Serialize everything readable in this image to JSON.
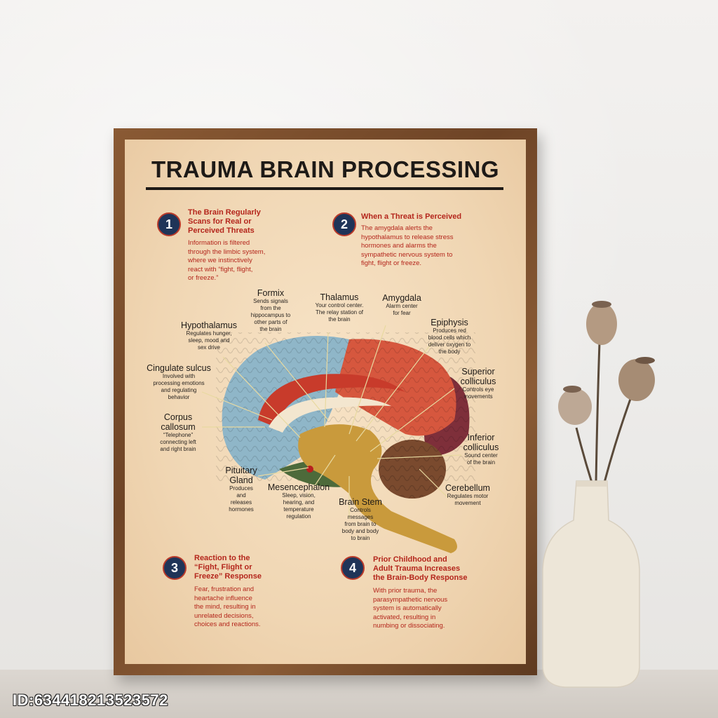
{
  "poster": {
    "title": "TRAUMA BRAIN PROCESSING",
    "steps": [
      {
        "number": "1",
        "title": "The Brain Regularly\nScans for Real or\nPerceived Threats",
        "body": "Information is filtered\nthrough the limbic system,\nwhere we instinctively\nreact with “fight, flight,\nor freeze.”"
      },
      {
        "number": "2",
        "title": "When a Threat is Perceived",
        "body": "The amygdala alerts the\nhypothalamus to release stress\nhormones and alarms the\nsympathetic nervous system to\nfight, flight or freeze."
      },
      {
        "number": "3",
        "title": "Reaction to the\n“Fight, Flight or\nFreeze” Response",
        "body": "Fear, frustration and\nheartache influence\nthe mind, resulting in\nunrelated decisions,\nchoices and reactions."
      },
      {
        "number": "4",
        "title": "Prior Childhood and\nAdult Trauma Increases\nthe Brain-Body Response",
        "body": "With prior trauma, the\nparasympathetic nervous\nsystem is automatically\nactivated, resulting in\nnumbing or dissociating."
      }
    ],
    "labels": {
      "formix": {
        "name": "Formix",
        "desc": "Sends signals\nfrom the\nhippocampus to\nother parts of\nthe brain"
      },
      "thalamus": {
        "name": "Thalamus",
        "desc": "Your control center.\nThe relay station of\nthe brain"
      },
      "amygdala": {
        "name": "Amygdala",
        "desc": "Alarm center\nfor fear"
      },
      "hypothalamus": {
        "name": "Hypothalamus",
        "desc": "Regulates hunger,\nsleep, mood and\nsex drive"
      },
      "epiphysis": {
        "name": "Epiphysis",
        "desc": "Produces red\nblood cells which\ndeliver oxygen to\nthe body"
      },
      "cingulate": {
        "name": "Cingulate sulcus",
        "desc": "Involved with\nprocessing emotions\nand regulating\nbehavior"
      },
      "superior": {
        "name": "Superior\ncolliculus",
        "desc": "Controls eye\nmovements"
      },
      "corpus": {
        "name": "Corpus\ncallosum",
        "desc": "“Telephone”\nconnecting left\nand right brain"
      },
      "inferior": {
        "name": "Inferior\ncolliculus",
        "desc": "Sound center\nof the brain"
      },
      "pituitary": {
        "name": "Pituitary\nGland",
        "desc": "Produces\nand\nreleases\nhormones"
      },
      "mesencephalon": {
        "name": "Mesencephalon",
        "desc": "Sleep, vision,\nhearing, and\ntemperature\nregulation"
      },
      "cerebellum": {
        "name": "Cerebellum",
        "desc": "Regulates motor\nmovement"
      },
      "brainstem": {
        "name": "Brain Stem",
        "desc": "Controls\nmessages\nfrom brain to\nbody and body\nto brain"
      }
    }
  },
  "watermark": "ID:634418213523572",
  "colors": {
    "accent_red": "#b4261c",
    "badge_navy": "#1f3458",
    "frame_wood": "#7a4d2c",
    "paper": "#f2d9b6"
  }
}
